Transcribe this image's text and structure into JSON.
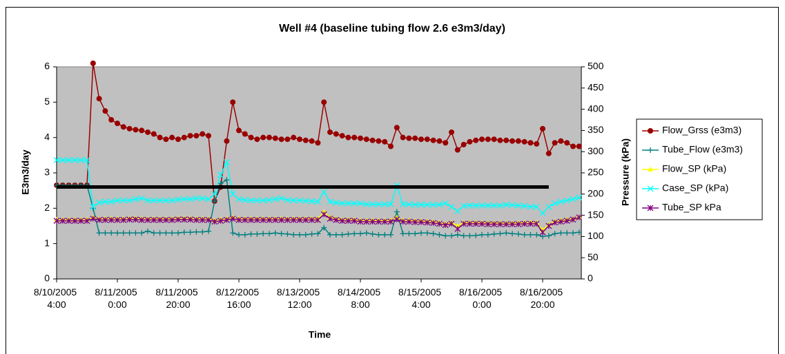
{
  "chart_data": {
    "type": "line",
    "title": "Well #4 (baseline tubing flow 2.6 e3m3/day)",
    "x_label": "Time",
    "y_label": "E3m3/day",
    "y2_label": "Pressure (kPa)",
    "categories": [
      "8/10/2005 4:00",
      null,
      null,
      null,
      null,
      null,
      null,
      null,
      null,
      null,
      "8/11/2005 0:00",
      null,
      null,
      null,
      null,
      null,
      null,
      null,
      null,
      null,
      "8/11/2005 20:00",
      null,
      null,
      null,
      null,
      null,
      null,
      null,
      null,
      null,
      "8/12/2005 16:00",
      null,
      null,
      null,
      null,
      null,
      null,
      null,
      null,
      null,
      "8/13/2005 12:00",
      null,
      null,
      null,
      null,
      null,
      null,
      null,
      null,
      null,
      "8/14/2005 8:00",
      null,
      null,
      null,
      null,
      null,
      null,
      null,
      null,
      null,
      "8/15/2005 4:00",
      null,
      null,
      null,
      null,
      null,
      null,
      null,
      null,
      null,
      "8/16/2005 0:00",
      null,
      null,
      null,
      null,
      null,
      null,
      null,
      null,
      null,
      "8/16/2005 20:00",
      null,
      null,
      null,
      null,
      null,
      null
    ],
    "ylim": [
      0,
      6
    ],
    "yticks": [
      0,
      1,
      2,
      3,
      4,
      5,
      6
    ],
    "y2lim": [
      0,
      500
    ],
    "y2ticks": [
      0,
      50,
      100,
      150,
      200,
      250,
      300,
      350,
      400,
      450,
      500
    ],
    "plot_background": "#c0c0c0",
    "legend": "right",
    "reference_line": {
      "value": 2.6,
      "color": "#000000"
    },
    "series": [
      {
        "name": "Flow_Grss (e3m3)",
        "color": "#990000",
        "marker": "circle",
        "values": [
          2.65,
          2.65,
          2.65,
          2.65,
          2.65,
          2.65,
          6.1,
          5.1,
          4.75,
          4.5,
          4.4,
          4.3,
          4.25,
          4.22,
          4.2,
          4.15,
          4.1,
          4.0,
          3.95,
          4.0,
          3.95,
          4.0,
          4.05,
          4.05,
          4.1,
          4.05,
          2.2,
          2.6,
          3.9,
          5.0,
          4.2,
          4.1,
          4.0,
          3.95,
          4.0,
          4.0,
          3.98,
          3.95,
          3.95,
          4.0,
          3.95,
          3.92,
          3.9,
          3.85,
          5.0,
          4.15,
          4.1,
          4.05,
          4.0,
          4.0,
          3.98,
          3.95,
          3.92,
          3.9,
          3.88,
          3.75,
          4.28,
          4.0,
          3.98,
          3.98,
          3.95,
          3.95,
          3.92,
          3.9,
          3.85,
          4.15,
          3.65,
          3.8,
          3.88,
          3.92,
          3.95,
          3.95,
          3.95,
          3.92,
          3.92,
          3.9,
          3.9,
          3.88,
          3.85,
          3.82,
          4.25,
          3.55,
          3.85,
          3.9,
          3.85,
          3.75,
          3.75
        ]
      },
      {
        "name": "Tube_Flow (e3m3)",
        "color": "#008080",
        "marker": "plus",
        "values": [
          2.65,
          2.65,
          2.65,
          2.65,
          2.65,
          2.65,
          2.0,
          1.3,
          1.3,
          1.3,
          1.3,
          1.3,
          1.3,
          1.3,
          1.3,
          1.35,
          1.3,
          1.3,
          1.3,
          1.3,
          1.3,
          1.32,
          1.32,
          1.33,
          1.33,
          1.35,
          2.2,
          2.7,
          2.8,
          1.3,
          1.25,
          1.25,
          1.27,
          1.27,
          1.28,
          1.28,
          1.3,
          1.28,
          1.27,
          1.25,
          1.25,
          1.25,
          1.27,
          1.28,
          1.45,
          1.25,
          1.25,
          1.25,
          1.27,
          1.28,
          1.28,
          1.3,
          1.27,
          1.25,
          1.25,
          1.25,
          1.9,
          1.28,
          1.28,
          1.28,
          1.3,
          1.3,
          1.28,
          1.25,
          1.22,
          1.22,
          1.25,
          1.22,
          1.22,
          1.23,
          1.25,
          1.25,
          1.27,
          1.28,
          1.3,
          1.28,
          1.27,
          1.25,
          1.25,
          1.25,
          1.2,
          1.22,
          1.28,
          1.3,
          1.3,
          1.3,
          1.32
        ]
      },
      {
        "name": "Flow_SP (kPa)",
        "color": "#ffff00",
        "marker": "triangle",
        "axis": "y2",
        "values": [
          140,
          140,
          140,
          140,
          140,
          140,
          145,
          142,
          142,
          142,
          142,
          142,
          143,
          143,
          142,
          142,
          142,
          142,
          142,
          142,
          143,
          143,
          143,
          142,
          142,
          142,
          138,
          140,
          142,
          145,
          142,
          142,
          142,
          142,
          142,
          142,
          142,
          142,
          142,
          142,
          142,
          142,
          142,
          142,
          158,
          145,
          142,
          140,
          140,
          140,
          138,
          138,
          138,
          138,
          138,
          138,
          145,
          138,
          138,
          137,
          137,
          136,
          135,
          133,
          130,
          133,
          125,
          133,
          133,
          133,
          133,
          132,
          132,
          132,
          132,
          132,
          132,
          133,
          133,
          133,
          115,
          128,
          136,
          138,
          140,
          142,
          146
        ]
      },
      {
        "name": "Case_SP (kPa)",
        "color": "#00ffff",
        "marker": "x",
        "axis": "y2",
        "values": [
          280,
          280,
          280,
          280,
          280,
          280,
          170,
          180,
          182,
          182,
          185,
          185,
          185,
          188,
          190,
          185,
          185,
          185,
          185,
          185,
          187,
          188,
          188,
          190,
          190,
          188,
          200,
          245,
          275,
          200,
          188,
          186,
          185,
          185,
          185,
          186,
          188,
          190,
          186,
          185,
          185,
          184,
          183,
          182,
          205,
          182,
          180,
          178,
          178,
          178,
          178,
          176,
          176,
          176,
          176,
          176,
          220,
          176,
          176,
          175,
          175,
          175,
          175,
          175,
          178,
          170,
          160,
          172,
          173,
          173,
          173,
          173,
          173,
          173,
          175,
          174,
          173,
          172,
          170,
          170,
          155,
          170,
          178,
          182,
          185,
          188,
          192
        ]
      },
      {
        "name": "Tube_SP kPa",
        "color": "#800080",
        "marker": "star",
        "axis": "y2",
        "values": [
          137,
          137,
          137,
          137,
          137,
          137,
          142,
          139,
          139,
          139,
          139,
          139,
          140,
          140,
          139,
          139,
          139,
          139,
          139,
          139,
          140,
          140,
          140,
          139,
          139,
          139,
          135,
          137,
          139,
          142,
          139,
          139,
          139,
          139,
          139,
          139,
          139,
          139,
          139,
          139,
          139,
          139,
          139,
          139,
          152,
          142,
          139,
          137,
          137,
          137,
          135,
          135,
          135,
          135,
          135,
          135,
          140,
          135,
          135,
          134,
          134,
          133,
          132,
          130,
          127,
          130,
          118,
          130,
          130,
          130,
          130,
          129,
          129,
          129,
          129,
          129,
          129,
          130,
          130,
          130,
          110,
          125,
          133,
          135,
          137,
          140,
          145
        ]
      }
    ]
  }
}
